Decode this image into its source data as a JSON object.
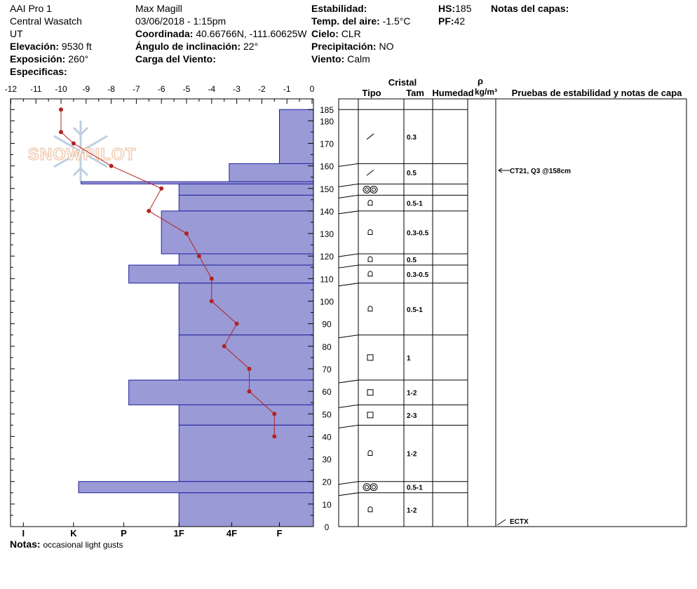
{
  "header": {
    "org": "AAI Pro 1",
    "range": "Central Wasatch",
    "state": "UT",
    "elevation_label": "Elevación:",
    "elevation_value": "9530 ft",
    "aspect_label": "Exposición:",
    "aspect_value": "260°",
    "specifics_label": "Especificas:",
    "observer": "Max Magill",
    "datetime": "03/06/2018 - 1:15pm",
    "coord_label": "Coordinada:",
    "coord_value": "40.66766N, -111.60625W",
    "slope_label": "Ángulo de inclinación:",
    "slope_value": "22°",
    "wind_load_label": "Carga del Viento:",
    "stability_label": "Estabilidad:",
    "air_temp_label": "Temp. del aire:",
    "air_temp_value": "-1.5°C",
    "sky_label": "Cielo:",
    "sky_value": "CLR",
    "precip_label": "Precipitación:",
    "precip_value": "NO",
    "wind_label": "Viento:",
    "wind_value": "Calm",
    "hs_label": "HS:",
    "hs_value": "185",
    "pf_label": "PF:",
    "pf_value": "42",
    "layer_notes_label": "Notas del capas:"
  },
  "notes": {
    "label": "Notas:",
    "value": "occasional light gusts"
  },
  "logo": {
    "text": "SNOWPILOT"
  },
  "colors": {
    "hardness_fill": "#9a9ad6",
    "hardness_line": "#2020a0",
    "temp_line": "#b22222"
  },
  "table_headers": {
    "cristal": "Cristal",
    "tipo": "Tipo",
    "tam": "Tam",
    "humedad": "Humedad",
    "rho": "ρ",
    "density_unit": "kg/m³",
    "tests": "Pruebas de estabilidad y notas de capa"
  },
  "chart_data": {
    "type": "snow_profile",
    "temperature_axis": {
      "ticks": [
        -12,
        -11,
        -10,
        -9,
        -8,
        -7,
        -6,
        -5,
        -4,
        -3,
        -2,
        -1,
        0
      ],
      "range": [
        -12,
        0
      ]
    },
    "depth_axis": {
      "ticks": [
        0,
        10,
        20,
        30,
        40,
        50,
        60,
        70,
        80,
        90,
        100,
        110,
        120,
        130,
        140,
        150,
        160,
        170,
        180,
        185
      ],
      "range": [
        0,
        185
      ],
      "unit": "cm"
    },
    "hardness_axis": {
      "labels": [
        "I",
        "K",
        "P",
        "1F",
        "4F",
        "F"
      ]
    },
    "temperature_profile": [
      {
        "depth": 185,
        "temp": -10
      },
      {
        "depth": 175,
        "temp": -10
      },
      {
        "depth": 170,
        "temp": -9.5
      },
      {
        "depth": 160,
        "temp": -8
      },
      {
        "depth": 150,
        "temp": -6
      },
      {
        "depth": 140,
        "temp": -6.5
      },
      {
        "depth": 130,
        "temp": -5
      },
      {
        "depth": 120,
        "temp": -4.5
      },
      {
        "depth": 110,
        "temp": -4
      },
      {
        "depth": 100,
        "temp": -4
      },
      {
        "depth": 90,
        "temp": -3
      },
      {
        "depth": 80,
        "temp": -3.5
      },
      {
        "depth": 70,
        "temp": -2.5
      },
      {
        "depth": 60,
        "temp": -2.5
      },
      {
        "depth": 50,
        "temp": -1.5
      },
      {
        "depth": 40,
        "temp": -1.5
      }
    ],
    "layers": [
      {
        "top": 185,
        "bottom": 161,
        "hardness_temp": -1.3,
        "type": "decomposing",
        "size": "0.3"
      },
      {
        "top": 161,
        "bottom": 153,
        "hardness_temp": -3.3,
        "type": "decomposing",
        "size": "0.5"
      },
      {
        "top": 153,
        "bottom": 152,
        "hardness_temp": -9.2,
        "type": "surface-hoar",
        "size": ""
      },
      {
        "top": 152,
        "bottom": 147,
        "hardness_temp": -5.3,
        "type": "surface-hoar",
        "size": ""
      },
      {
        "top": 147,
        "bottom": 140,
        "hardness_temp": -5.3,
        "type": "faceted-rounded",
        "size": "0.5-1"
      },
      {
        "top": 140,
        "bottom": 121,
        "hardness_temp": -6,
        "type": "faceted-rounded",
        "size": "0.3-0.5"
      },
      {
        "top": 121,
        "bottom": 116,
        "hardness_temp": -5.3,
        "type": "faceted-rounded",
        "size": "0.5"
      },
      {
        "top": 116,
        "bottom": 108,
        "hardness_temp": -7.3,
        "type": "faceted-rounded",
        "size": "0.3-0.5"
      },
      {
        "top": 108,
        "bottom": 85,
        "hardness_temp": -5.3,
        "type": "faceted-rounded",
        "size": "0.5-1"
      },
      {
        "top": 85,
        "bottom": 65,
        "hardness_temp": -5.3,
        "type": "faceted",
        "size": "1"
      },
      {
        "top": 65,
        "bottom": 54,
        "hardness_temp": -7.3,
        "type": "faceted",
        "size": "1-2"
      },
      {
        "top": 54,
        "bottom": 45,
        "hardness_temp": -5.3,
        "type": "faceted",
        "size": "2-3"
      },
      {
        "top": 45,
        "bottom": 20,
        "hardness_temp": -5.3,
        "type": "faceted-rounded",
        "size": "1-2"
      },
      {
        "top": 20,
        "bottom": 15,
        "hardness_temp": -9.3,
        "type": "surface-hoar",
        "size": "0.5-1"
      },
      {
        "top": 15,
        "bottom": 0,
        "hardness_temp": -5.3,
        "type": "faceted-rounded",
        "size": "1-2"
      }
    ],
    "tests": [
      {
        "depth": 158,
        "text": "CT21, Q3 @158cm"
      },
      {
        "depth": 0,
        "text": "ECTX"
      }
    ]
  }
}
